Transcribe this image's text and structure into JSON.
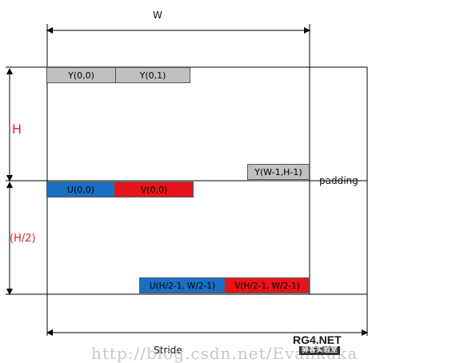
{
  "labels": {
    "width": "W",
    "height": "H",
    "half_height": "(H/2)",
    "stride": "Stride",
    "padding": "padding"
  },
  "y_plane": {
    "first": "Y(0,0)",
    "second": "Y(0,1)",
    "last": "Y(W-1,H-1)"
  },
  "uv_plane": {
    "u_first": "U(0,0)",
    "v_first": "V(0,0)",
    "u_last": "U(H/2-1, W/2-1)",
    "v_last": "V(H/2-1, W/2-1)"
  },
  "colors": {
    "y_block": "#c0c0c0",
    "u_block": "#1a6fc4",
    "v_block": "#e8141b",
    "label_accent": "#d22222"
  },
  "watermark": {
    "url": "http://blog.csdn.net/Evankaka",
    "logo": "RG4.NET",
    "logo_sub": "驿客实验室"
  }
}
